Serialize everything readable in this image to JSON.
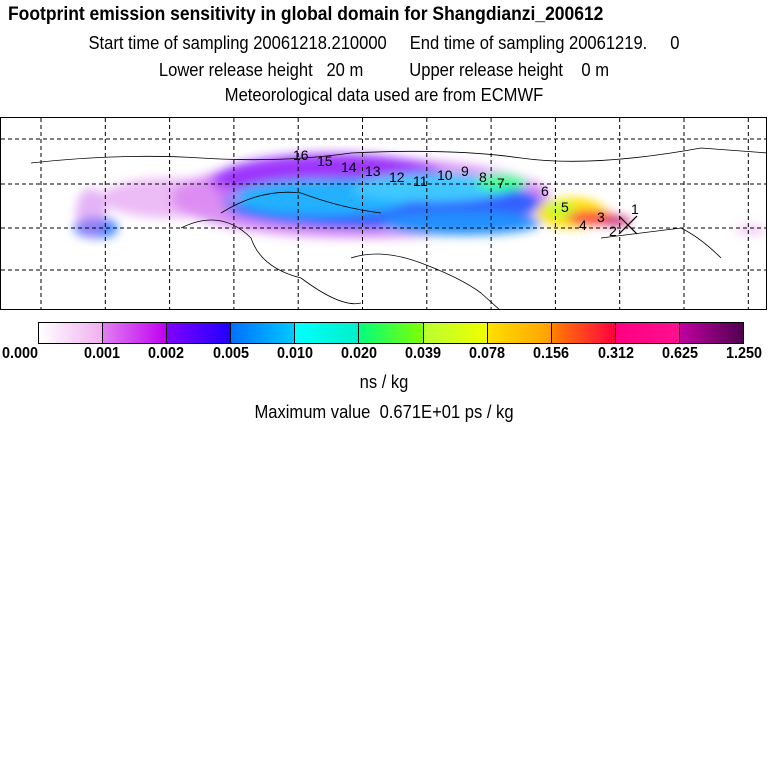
{
  "header": {
    "title": "Footprint emission sensitivity in global domain for Shangdianzi_200612",
    "sampling_line": "Start time of sampling 20061218.210000     End time of sampling 20061219.     0",
    "release_line": "Lower release height   20 m          Upper release height    0 m",
    "met_line": "Meteorological data used are from ECMWF"
  },
  "map": {
    "trajectory_labels": [
      "16",
      "15",
      "14",
      "13",
      "12",
      "11",
      "10",
      "9",
      "8",
      "7",
      "6",
      "5",
      "4",
      "3",
      "2",
      "1"
    ]
  },
  "colorbar": {
    "ticks": [
      "0.000",
      "0.001",
      "0.002",
      "0.005",
      "0.010",
      "0.020",
      "0.039",
      "0.078",
      "0.156",
      "0.312",
      "0.625",
      "1.250"
    ],
    "colors": [
      [
        "#ffffff",
        "#f0b0f0"
      ],
      [
        "#e080f0",
        "#c000f0"
      ],
      [
        "#8000ff",
        "#2000ff"
      ],
      [
        "#0070ff",
        "#00c8ff"
      ],
      [
        "#00ffff",
        "#00f0c8"
      ],
      [
        "#00ff80",
        "#80ff00"
      ],
      [
        "#b8ff30",
        "#f0ff00"
      ],
      [
        "#ffe000",
        "#ffa000"
      ],
      [
        "#ff8000",
        "#ff0040"
      ],
      [
        "#ff0080",
        "#ff1090"
      ],
      [
        "#c000a0",
        "#500050"
      ]
    ],
    "unit": "ns / kg",
    "max_value": "Maximum value  0.671E+01 ps / kg"
  }
}
